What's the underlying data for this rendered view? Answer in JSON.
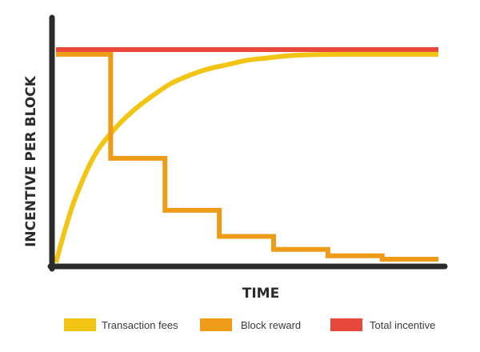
{
  "chart_data": {
    "type": "line",
    "title": "",
    "xlabel": "TIME",
    "ylabel": "INCENTIVE PER BLOCK",
    "xlim": [
      0,
      100
    ],
    "ylim": [
      0,
      100
    ],
    "grid": false,
    "legend_placement": "bottom",
    "series": [
      {
        "name": "Transaction fees",
        "color": "#F2C414",
        "shape": "curve",
        "x": [
          0,
          2,
          5,
          10,
          15,
          20,
          25,
          30,
          35,
          40,
          45,
          50,
          55,
          60,
          65,
          70,
          75,
          80,
          85,
          90,
          95,
          100
        ],
        "y": [
          0,
          13,
          30,
          50,
          62,
          71,
          78,
          84,
          88,
          91,
          93,
          95,
          96,
          97,
          97.5,
          97.7,
          97.8,
          97.8,
          97.8,
          97.8,
          97.8,
          97.8
        ]
      },
      {
        "name": "Block reward",
        "color": "#EE9B17",
        "shape": "step",
        "x": [
          0,
          14.3,
          14.3,
          28.5,
          28.5,
          42.7,
          42.7,
          56.9,
          56.9,
          71.1,
          71.1,
          85.3,
          85.3,
          100
        ],
        "y": [
          97.8,
          97.8,
          48.9,
          48.9,
          24.5,
          24.5,
          12.2,
          12.2,
          6.1,
          6.1,
          3.1,
          3.1,
          1.5,
          1.5
        ]
      },
      {
        "name": "Total incentive",
        "color": "#E8483B",
        "shape": "line",
        "x": [
          0,
          100
        ],
        "y": [
          100,
          100
        ]
      }
    ]
  }
}
